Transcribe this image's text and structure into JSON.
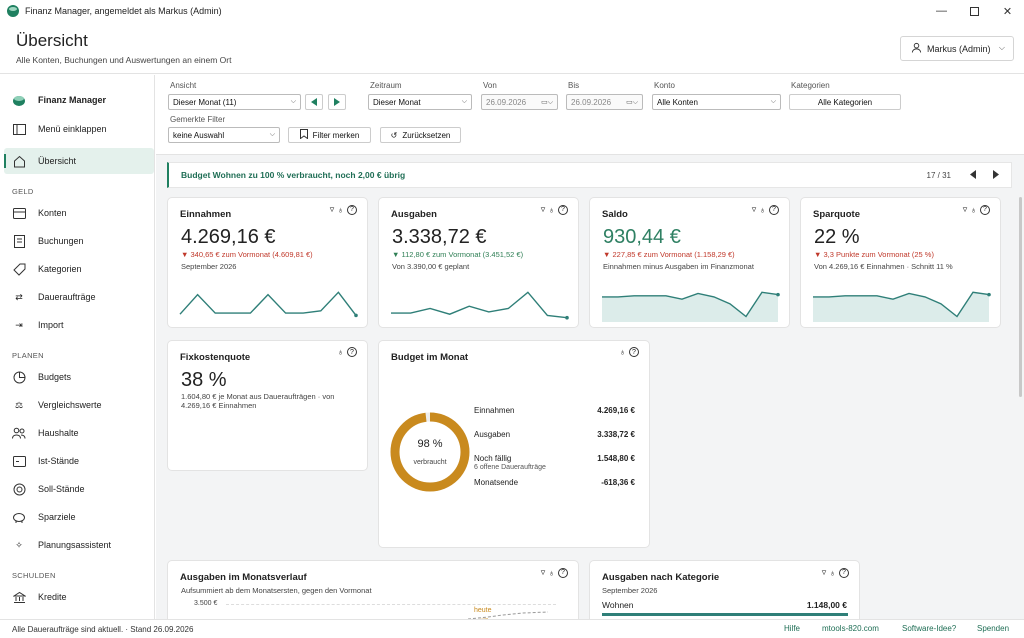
{
  "window": {
    "title": "Finanz Manager, angemeldet als Markus (Admin)"
  },
  "header": {
    "title": "Übersicht",
    "subtitle": "Alle Konten, Buchungen und Auswertungen an einem Ort",
    "user_label": "Markus (Admin)"
  },
  "sidebar": {
    "brand": "Finanz Manager",
    "collapse_label": "Menü einklappen",
    "overview_label": "Übersicht",
    "sections": {
      "geld": "GELD",
      "planen": "PLANEN",
      "schulden": "SCHULDEN"
    },
    "geld_items": [
      "Konten",
      "Buchungen",
      "Kategorien",
      "Daueraufträge",
      "Import"
    ],
    "planen_items": [
      "Budgets",
      "Vergleichswerte",
      "Haushalte",
      "Ist-Stände",
      "Soll-Stände",
      "Sparziele",
      "Planungsassistent"
    ],
    "schulden_items": [
      "Kredite"
    ]
  },
  "filters": {
    "ansicht_label": "Ansicht",
    "ansicht_value": "Dieser Monat (11)",
    "zeitraum_label": "Zeitraum",
    "zeitraum_value": "Dieser Monat",
    "von_label": "Von",
    "von_value": "26.09.2026",
    "bis_label": "Bis",
    "bis_value": "26.09.2026",
    "konto_label": "Konto",
    "konto_value": "Alle Konten",
    "kategorien_label": "Kategorien",
    "kategorien_button": "Alle Kategorien",
    "gemerkte_label": "Gemerkte Filter",
    "gemerkte_value": "keine Auswahl",
    "merken_button": "Filter merken",
    "reset_button": "Zurücksetzen"
  },
  "alert": {
    "message": "Budget Wohnen zu 100 % verbraucht, noch 2,00 € übrig",
    "counter": "17 / 31"
  },
  "cards": {
    "einnahmen": {
      "title": "Einnahmen",
      "value": "4.269,16 €",
      "delta": "▼ 340,65 € zum Vormonat (4.609,81 €)",
      "note": "September 2026",
      "spark": [
        5,
        22,
        6,
        6,
        6,
        22,
        6,
        6,
        8,
        24,
        4
      ]
    },
    "ausgaben": {
      "title": "Ausgaben",
      "value": "3.338,72 €",
      "delta": "▼ 112,80 € zum Vormonat (3.451,52 €)",
      "note": "Von 3.390,00 € geplant",
      "spark": [
        6,
        6,
        10,
        5,
        12,
        7,
        10,
        24,
        4,
        2
      ]
    },
    "saldo": {
      "title": "Saldo",
      "value": "930,44 €",
      "delta": "▼ 227,85 € zum Vormonat (1.158,29 €)",
      "note": "Einnahmen minus Ausgaben im Finanzmonat",
      "spark": [
        20,
        20,
        21,
        21,
        21,
        18,
        23,
        20,
        14,
        3,
        24,
        22
      ]
    },
    "sparquote": {
      "title": "Sparquote",
      "value": "22 %",
      "delta": "▼ 3,3 Punkte zum Vormonat (25 %)",
      "note": "Von 4.269,16 € Einnahmen · Schnitt 11 %",
      "spark": [
        20,
        20,
        21,
        21,
        21,
        18,
        23,
        20,
        14,
        3,
        24,
        22
      ]
    },
    "fixkosten": {
      "title": "Fixkostenquote",
      "value": "38 %",
      "note1": "1.604,80 € je Monat aus Daueraufträgen · von",
      "note2": "4.269,16 € Einnahmen"
    },
    "budget": {
      "title": "Budget im Monat",
      "percent_text": "98 %",
      "percent": 98,
      "sub": "verbraucht",
      "rows": [
        {
          "label": "Einnahmen",
          "value": "4.269,16 €"
        },
        {
          "label": "Ausgaben",
          "value": "3.338,72 €"
        },
        {
          "label": "Noch fällig",
          "value": "1.548,80 €",
          "sub": "6 offene Daueraufträge"
        },
        {
          "label": "Monatsende",
          "value": "-618,36 €"
        }
      ]
    },
    "verlauf": {
      "title": "Ausgaben im Monatsverlauf",
      "subtitle": "Aufsummiert ab dem Monatsersten, gegen den Vormonat",
      "tick": "3.500 €",
      "heute_label": "heute"
    },
    "kategorie": {
      "title": "Ausgaben nach Kategorie",
      "subtitle": "September 2026",
      "row_label": "Wohnen",
      "row_value": "1.148,00 €"
    }
  },
  "colors": {
    "accent": "#1f8060",
    "negative": "#c0392b",
    "donut": "#c98a1e",
    "spark": "#2f7f78"
  },
  "statusbar": {
    "left": "Alle Daueraufträge sind aktuell.  ·  Stand 26.09.2026",
    "links": [
      "Hilfe",
      "mtools-820.com",
      "Software-Idee?",
      "Spenden"
    ]
  }
}
